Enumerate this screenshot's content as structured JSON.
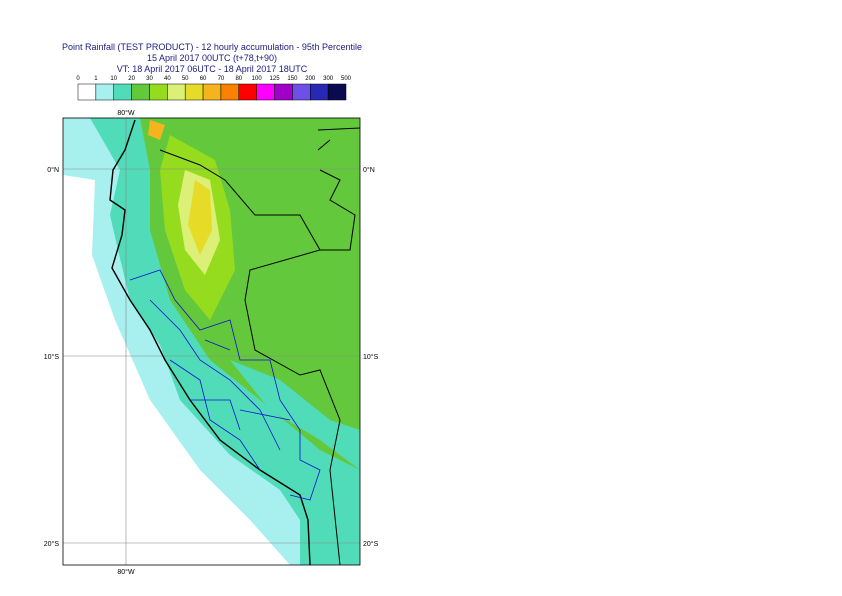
{
  "title": {
    "lines": [
      "Point Rainfall (TEST PRODUCT) - 12 hourly accumulation - 95th Percentile",
      "15 April 2017 00UTC (t+78,t+90)",
      "VT: 18 April 2017 06UTC - 18 April 2017 18UTC"
    ]
  },
  "legend": {
    "labels": [
      0,
      1,
      10,
      20,
      30,
      40,
      50,
      60,
      70,
      80,
      100,
      125,
      150,
      200,
      300,
      500
    ],
    "colors": [
      "#ffffff",
      "#a8f0f0",
      "#50dcb8",
      "#64c83c",
      "#96dc1e",
      "#dcf078",
      "#e6dc28",
      "#f5b41e",
      "#fa8200",
      "#ff0000",
      "#ff00ff",
      "#a000c8",
      "#6e50e6",
      "#2828b4",
      "#0a0a50"
    ]
  },
  "map": {
    "grid_labels": {
      "top": [
        "80°W"
      ],
      "bottom": [
        "80°W"
      ],
      "left": [
        "0°N",
        "10°S",
        "20°S"
      ],
      "right": [
        "0°N",
        "10°S",
        "20°S"
      ]
    }
  }
}
